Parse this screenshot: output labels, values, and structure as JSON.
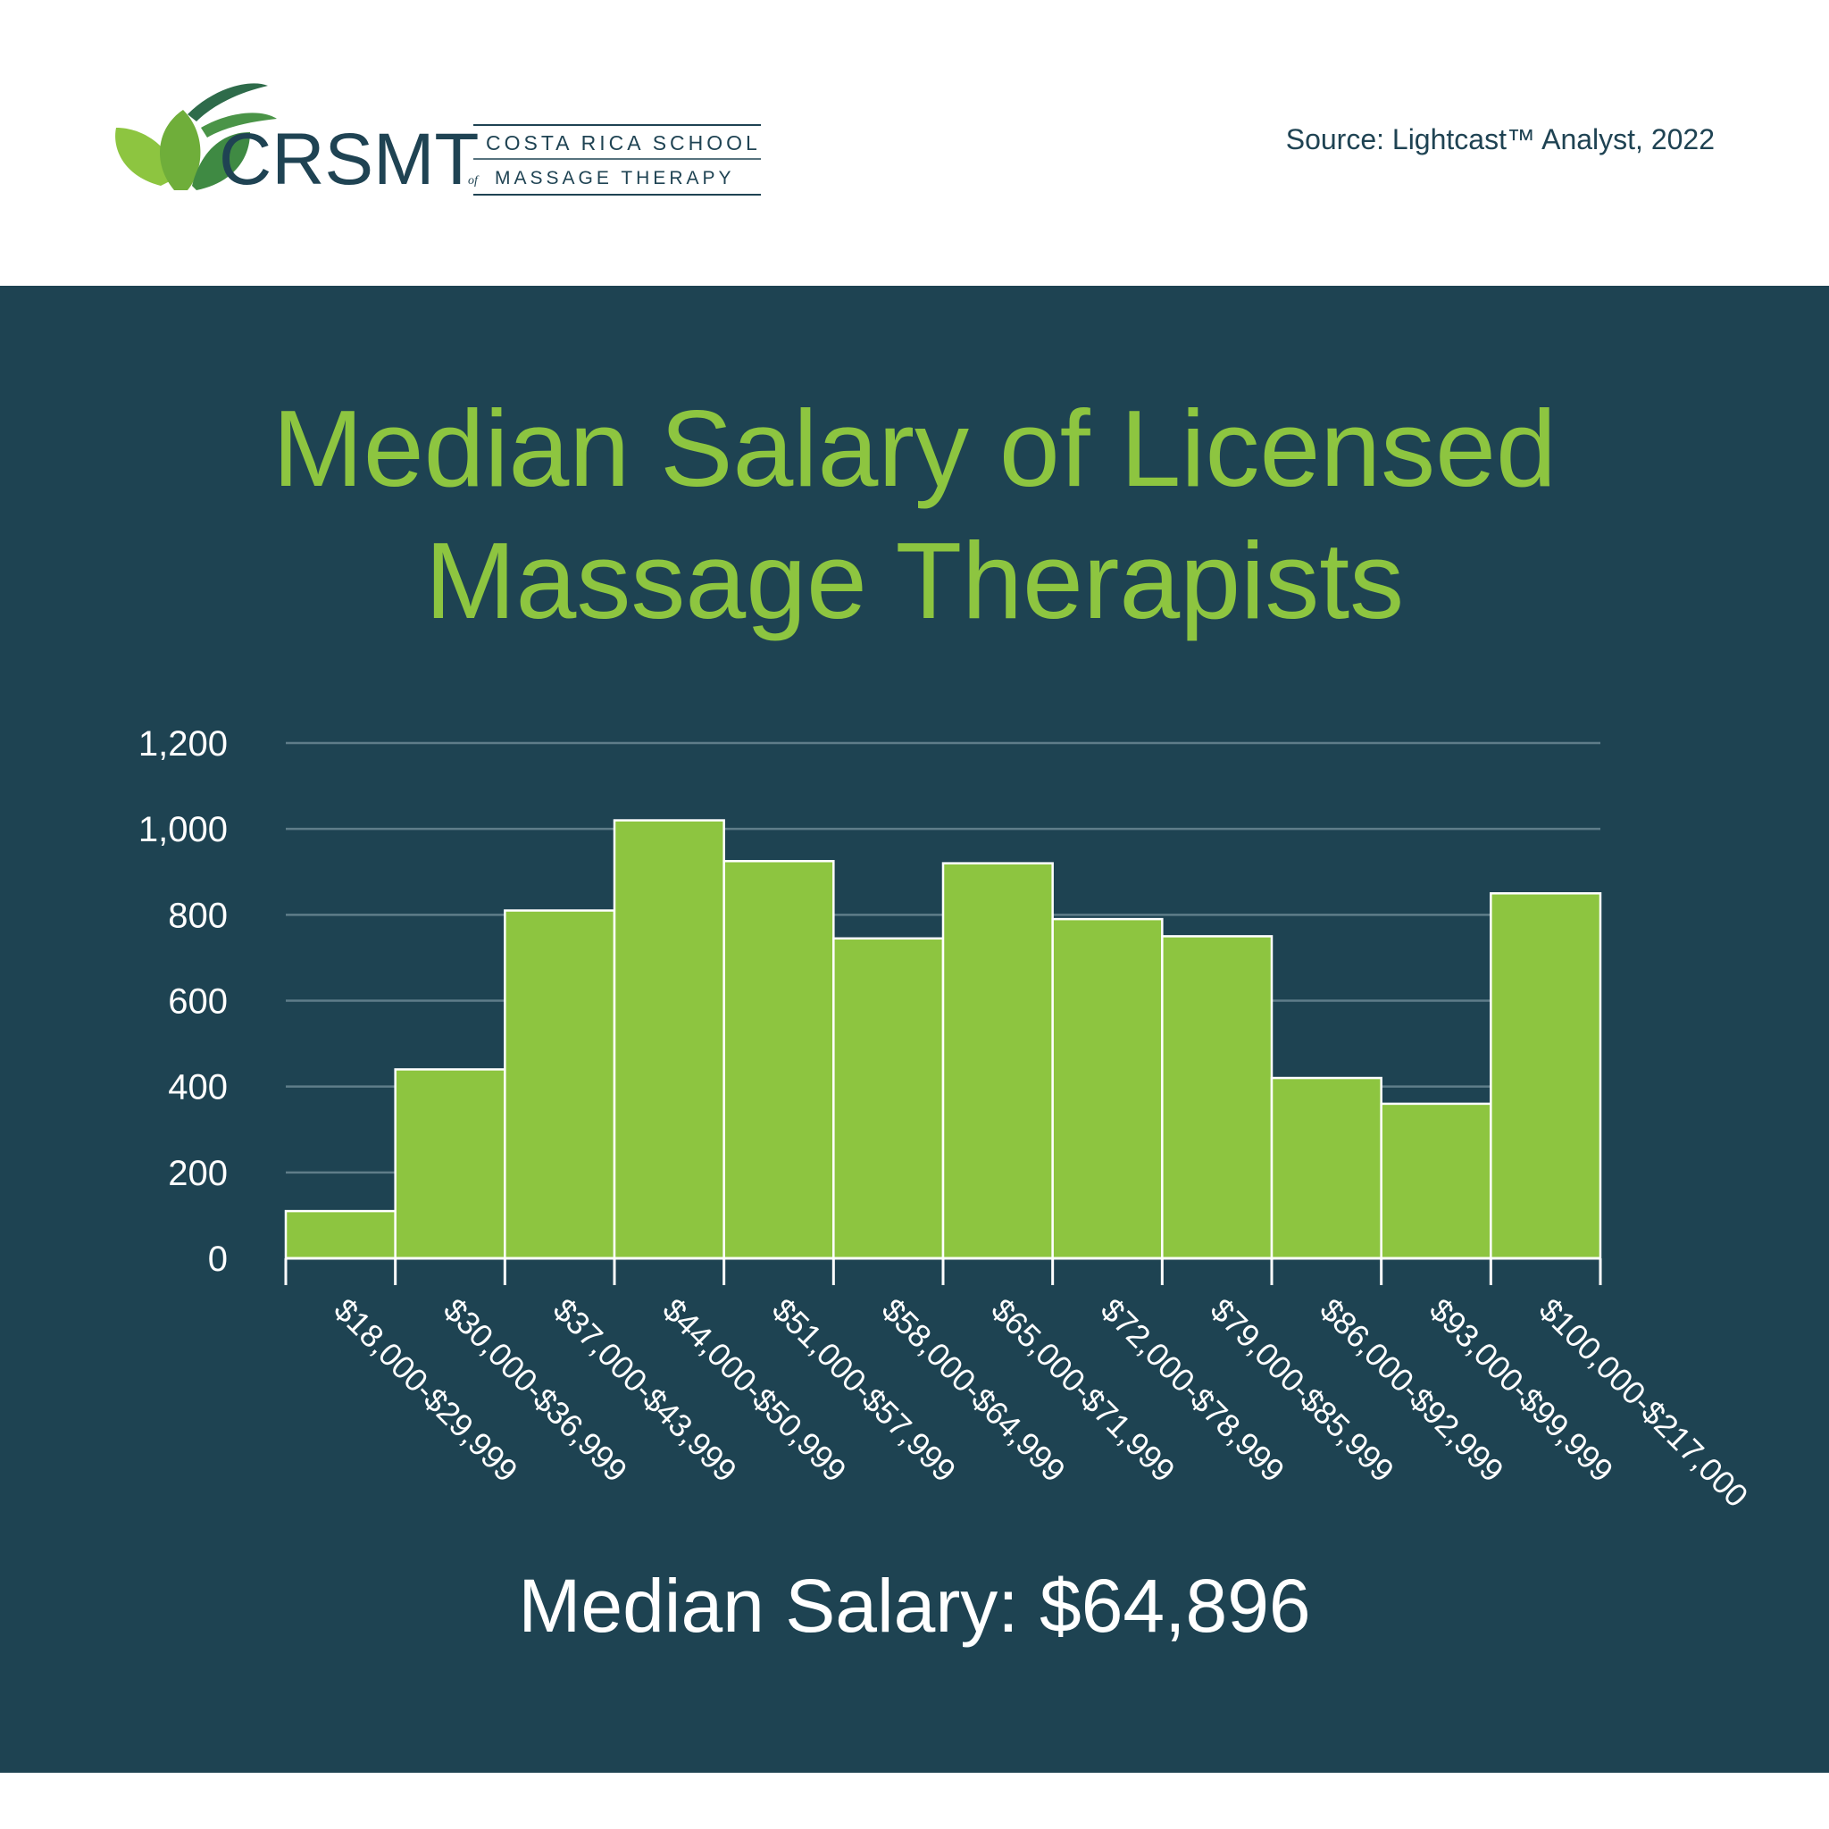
{
  "header": {
    "logo_text": "CRSMT",
    "logo_line1": "COSTA RICA SCHOOL",
    "logo_line2": "MASSAGE THERAPY",
    "logo_of": "of",
    "source": "Source: Lightcast™ Analyst, 2022"
  },
  "title_line1": "Median Salary of Licensed",
  "title_line2": "Massage Therapists",
  "median_label": "Median Salary: $64,896",
  "colors": {
    "panel": "#1e4352",
    "bar": "#8dc540",
    "title": "#8dc540",
    "grid": "#5f7d89"
  },
  "chart_data": {
    "type": "bar",
    "title": "Median Salary of Licensed Massage Therapists",
    "xlabel": "",
    "ylabel": "",
    "ylim": [
      0,
      1200
    ],
    "yticks": [
      0,
      200,
      400,
      600,
      800,
      1000,
      1200
    ],
    "ytick_labels": [
      "0",
      "200",
      "400",
      "600",
      "800",
      "1,000",
      "1,200"
    ],
    "grid": true,
    "categories": [
      "$18,000-$29,999",
      "$30,000-$36,999",
      "$37,000-$43,999",
      "$44,000-$50,999",
      "$51,000-$57,999",
      "$58,000-$64,999",
      "$65,000-$71,999",
      "$72,000-$78,999",
      "$79,000-$85,999",
      "$86,000-$92,999",
      "$93,000-$99,999",
      "$100,000-$217,000"
    ],
    "values": [
      110,
      440,
      810,
      1020,
      925,
      745,
      920,
      790,
      750,
      420,
      360,
      850
    ]
  }
}
